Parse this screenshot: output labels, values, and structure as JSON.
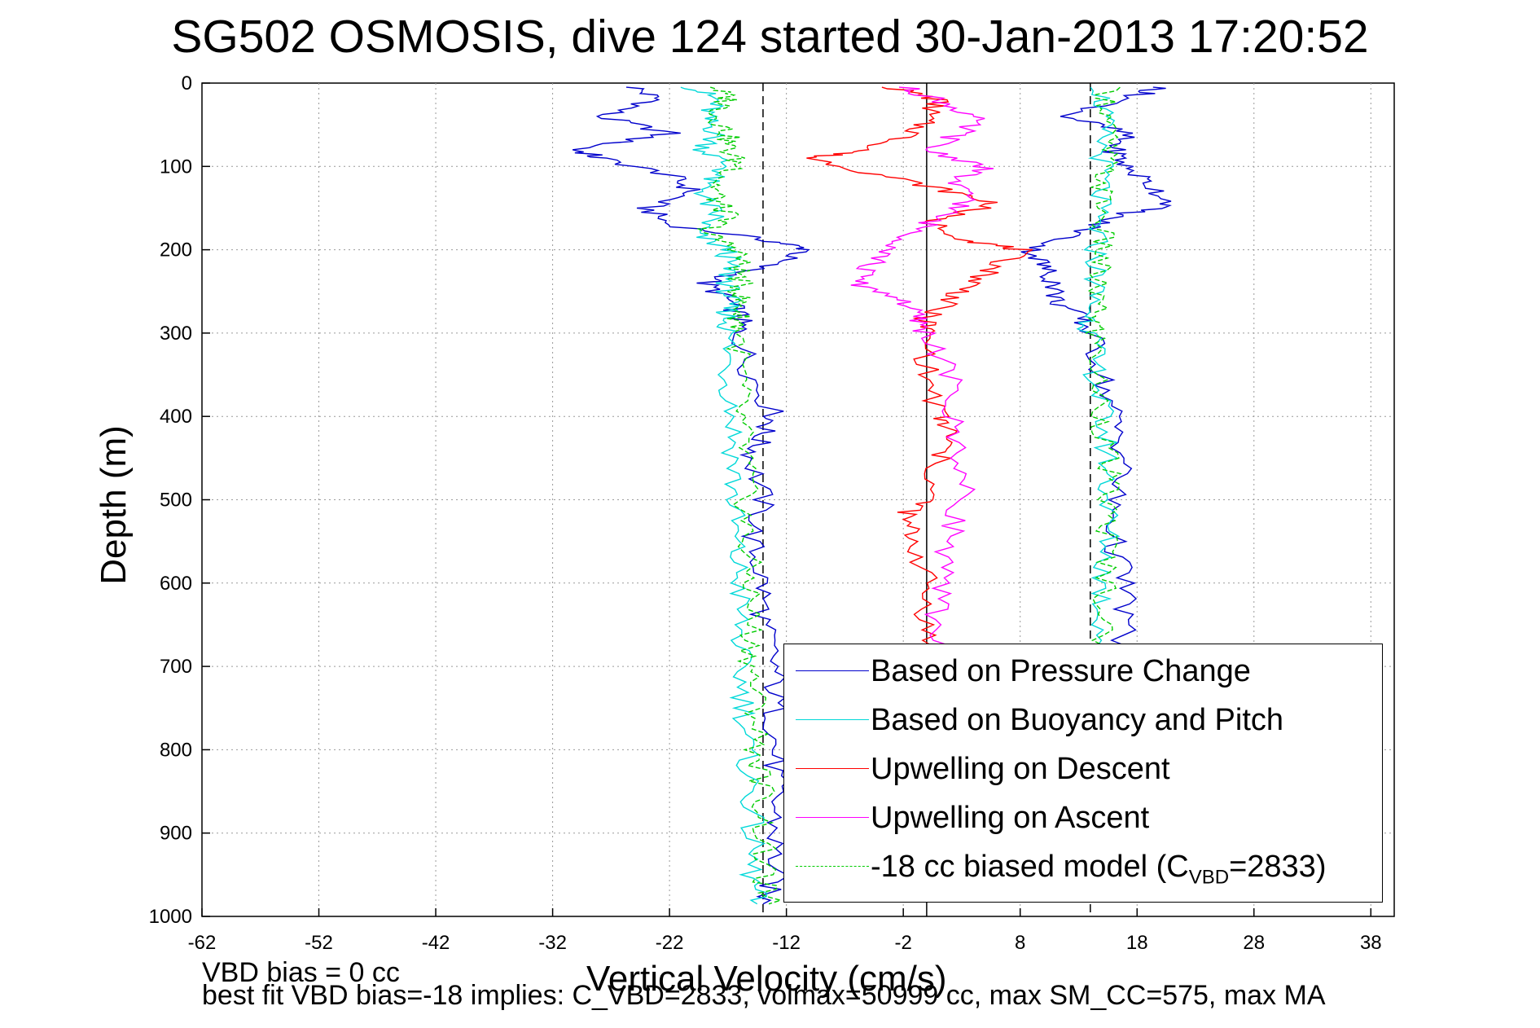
{
  "title": "SG502 OSMOSIS, dive 124 started 30-Jan-2013 17:20:52",
  "footer": {
    "line1": "VBD bias = 0 cc",
    "line2": "best fit VBD bias=-18 implies: C_VBD=2833, volmax=50999 cc, max SM_CC=575, max MA"
  },
  "chart_data": {
    "type": "line",
    "title": "SG502 OSMOSIS, dive 124 started 30-Jan-2013 17:20:52",
    "xlabel": "Vertical Velocity (cm/s)",
    "ylabel": "Depth (m)",
    "xlim": [
      -62,
      40
    ],
    "ylim": [
      0,
      1000
    ],
    "y_reversed": true,
    "grid": true,
    "x_ticks": [
      "-62",
      "-52",
      "-42",
      "-32",
      "-22",
      "-12",
      "-2",
      "8",
      "18",
      "28",
      "38"
    ],
    "y_ticks": [
      "0",
      "100",
      "200",
      "300",
      "400",
      "500",
      "600",
      "700",
      "800",
      "900",
      "1000"
    ],
    "reference_lines": [
      {
        "x": -14,
        "style": "dashed"
      },
      {
        "x": 0,
        "style": "solid"
      },
      {
        "x": 14,
        "style": "dashed"
      }
    ],
    "legend_placement": "bottom-right",
    "legend": {
      "pressure": "Based on Pressure Change",
      "buoyancy": "Based on Buoyancy and Pitch",
      "descent": "Upwelling on Descent",
      "ascent": "Upwelling on Ascent",
      "model_prefix": "-18 cc biased model (C",
      "model_sub": "VBD",
      "model_suffix": "=2833)"
    },
    "series": [
      {
        "key": "pressure_down",
        "color": "#0000cc",
        "depth": [
          5,
          20,
          40,
          60,
          80,
          90,
          110,
          130,
          150,
          170,
          190,
          200,
          220,
          240,
          260,
          280,
          300,
          350,
          400,
          420,
          450,
          500,
          550,
          600,
          650,
          700,
          750,
          800,
          850,
          900,
          950,
          985
        ],
        "values": [
          -25,
          -23,
          -28,
          -22,
          -30,
          -28,
          -22,
          -20,
          -24,
          -22,
          -13,
          -10,
          -14,
          -19,
          -17,
          -16,
          -16,
          -15,
          -13,
          -14,
          -15,
          -14,
          -15,
          -14,
          -14,
          -13,
          -13,
          -13,
          -13,
          -13,
          -13,
          -14
        ]
      },
      {
        "key": "buoyancy_down",
        "color": "#00d8d8",
        "depth": [
          5,
          20,
          40,
          60,
          80,
          100,
          120,
          140,
          160,
          180,
          200,
          220,
          240,
          260,
          280,
          300,
          350,
          400,
          450,
          500,
          550,
          600,
          650,
          700,
          750,
          800,
          850,
          900,
          950,
          985
        ],
        "values": [
          -20,
          -18,
          -19,
          -18,
          -19,
          -17,
          -19,
          -19,
          -18,
          -20,
          -17,
          -17,
          -17,
          -17,
          -17,
          -17,
          -17,
          -16.5,
          -16.5,
          -16.5,
          -16.5,
          -16,
          -16,
          -16,
          -15.5,
          -15.5,
          -15,
          -15,
          -15,
          -14.5
        ]
      },
      {
        "key": "model_down",
        "color": "#00cc00",
        "depth": [
          5,
          20,
          40,
          60,
          80,
          100,
          120,
          140,
          160,
          180,
          200,
          220,
          240,
          260,
          280,
          300,
          350,
          400,
          450,
          500,
          550,
          600,
          650,
          700,
          750,
          800,
          850,
          900,
          950,
          985
        ],
        "values": [
          -18,
          -17,
          -18,
          -17,
          -17,
          -16,
          -18,
          -18,
          -17,
          -19,
          -16,
          -16,
          -16,
          -16,
          -16,
          -16,
          -16,
          -16,
          -15.5,
          -15.5,
          -15.5,
          -15,
          -15,
          -15,
          -14.5,
          -14.5,
          -14,
          -14,
          -14,
          -13.5
        ]
      },
      {
        "key": "pressure_up",
        "color": "#0000cc",
        "depth": [
          5,
          15,
          40,
          60,
          80,
          100,
          120,
          145,
          160,
          180,
          200,
          220,
          240,
          260,
          280,
          300,
          350,
          400,
          450,
          500,
          550,
          600,
          650,
          700
        ],
        "values": [
          20,
          18,
          12,
          17,
          16,
          17,
          19,
          21,
          16,
          13,
          9,
          10,
          11,
          11,
          13,
          14,
          15,
          16,
          17,
          16,
          16,
          17,
          17,
          16
        ]
      },
      {
        "key": "buoyancy_up",
        "color": "#00d8d8",
        "depth": [
          5,
          40,
          80,
          120,
          160,
          200,
          240,
          280,
          300,
          350,
          400,
          450,
          500,
          550,
          600,
          650,
          700
        ],
        "values": [
          15,
          15,
          15,
          15,
          14.5,
          14.5,
          14.5,
          14,
          14,
          14.5,
          15,
          15.5,
          15.5,
          15.5,
          15,
          15,
          15
        ]
      },
      {
        "key": "model_up",
        "color": "#00cc00",
        "depth": [
          5,
          40,
          80,
          120,
          160,
          200,
          240,
          280,
          300,
          350,
          400,
          450,
          500,
          550,
          600,
          650,
          700
        ],
        "values": [
          15.5,
          15.5,
          15.5,
          15,
          15,
          15,
          14.5,
          14.5,
          14.5,
          14.5,
          15,
          15.5,
          15.5,
          15.5,
          15.5,
          15,
          15
        ]
      },
      {
        "key": "descent",
        "color": "#ff0000",
        "depth": [
          5,
          20,
          40,
          60,
          80,
          90,
          110,
          130,
          145,
          165,
          190,
          200,
          220,
          240,
          260,
          280,
          300,
          350,
          400,
          420,
          450,
          500,
          520,
          550,
          600,
          650,
          700
        ],
        "values": [
          -3,
          1,
          0,
          -1,
          -5,
          -10,
          -4,
          2,
          6,
          0,
          4,
          8,
          6,
          4,
          2,
          0,
          0,
          0,
          1,
          2,
          1,
          0,
          -2,
          -1,
          0,
          0,
          0
        ]
      },
      {
        "key": "ascent",
        "color": "#ff00ff",
        "depth": [
          5,
          20,
          40,
          60,
          80,
          100,
          120,
          140,
          160,
          180,
          200,
          220,
          240,
          260,
          280,
          300,
          350,
          400,
          450,
          500,
          550,
          600,
          650,
          700
        ],
        "values": [
          -2,
          1,
          4,
          3,
          0,
          5,
          2,
          4,
          1,
          -1,
          -3,
          -5,
          -6,
          -2,
          -1,
          0,
          2,
          2,
          3,
          3,
          2,
          1,
          1,
          1
        ]
      }
    ]
  }
}
